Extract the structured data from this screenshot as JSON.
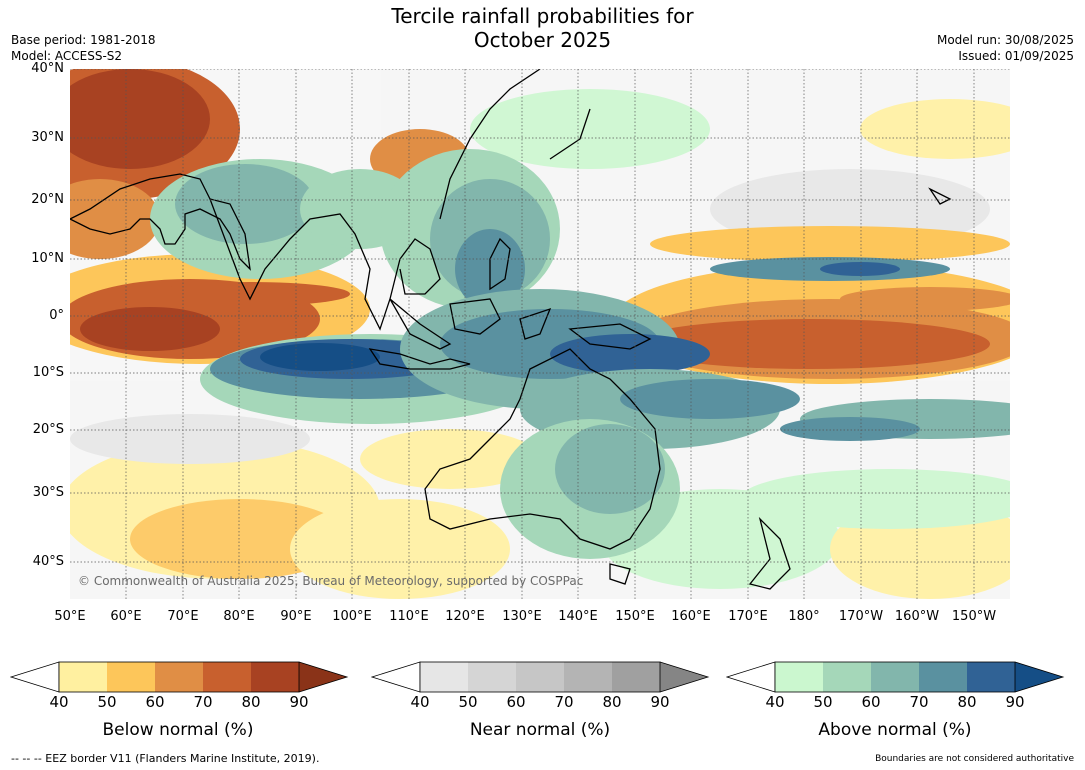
{
  "title_line1": "Tercile rainfall probabilities for",
  "title_line2": "October 2025",
  "base_period": "Base period: 1981-2018",
  "model": "Model: ACCESS-S2",
  "model_run": "Model run: 30/08/2025",
  "issued": "Issued: 01/09/2025",
  "copyright": "© Commonwealth of Australia 2025, Bureau of Meteorology, supported by COSPPac",
  "lat_labels": [
    "40°N",
    "30°N",
    "20°N",
    "10°N",
    "0°",
    "10°S",
    "20°S",
    "30°S",
    "40°S"
  ],
  "lon_labels": [
    "50°E",
    "60°E",
    "70°E",
    "80°E",
    "90°E",
    "100°E",
    "110°E",
    "120°E",
    "130°E",
    "140°E",
    "150°E",
    "160°E",
    "170°E",
    "180°",
    "170°W",
    "160°W",
    "150°W"
  ],
  "colorbars": [
    {
      "title": "Below normal (%)",
      "ticks": [
        "40",
        "50",
        "60",
        "70",
        "80",
        "90"
      ],
      "colors": [
        "#fff0a0",
        "#fdc65a",
        "#e08e45",
        "#c8602e",
        "#a84222",
        "#8a3318"
      ]
    },
    {
      "title": "Near normal (%)",
      "ticks": [
        "40",
        "50",
        "60",
        "70",
        "80",
        "90"
      ],
      "colors": [
        "#e6e6e6",
        "#d5d5d5",
        "#c6c6c6",
        "#b4b4b4",
        "#a0a0a0",
        "#858585"
      ]
    },
    {
      "title": "Above normal (%)",
      "ticks": [
        "40",
        "50",
        "60",
        "70",
        "80",
        "90"
      ],
      "colors": [
        "#cbf7cf",
        "#a5d7b9",
        "#82b6ac",
        "#5a91a0",
        "#306295",
        "#154e86"
      ]
    }
  ],
  "footer_left": "--  --  -- EEZ border V11 (Flanders Marine Institute, 2019).",
  "footer_right": "Boundaries are not considered authoritative"
}
